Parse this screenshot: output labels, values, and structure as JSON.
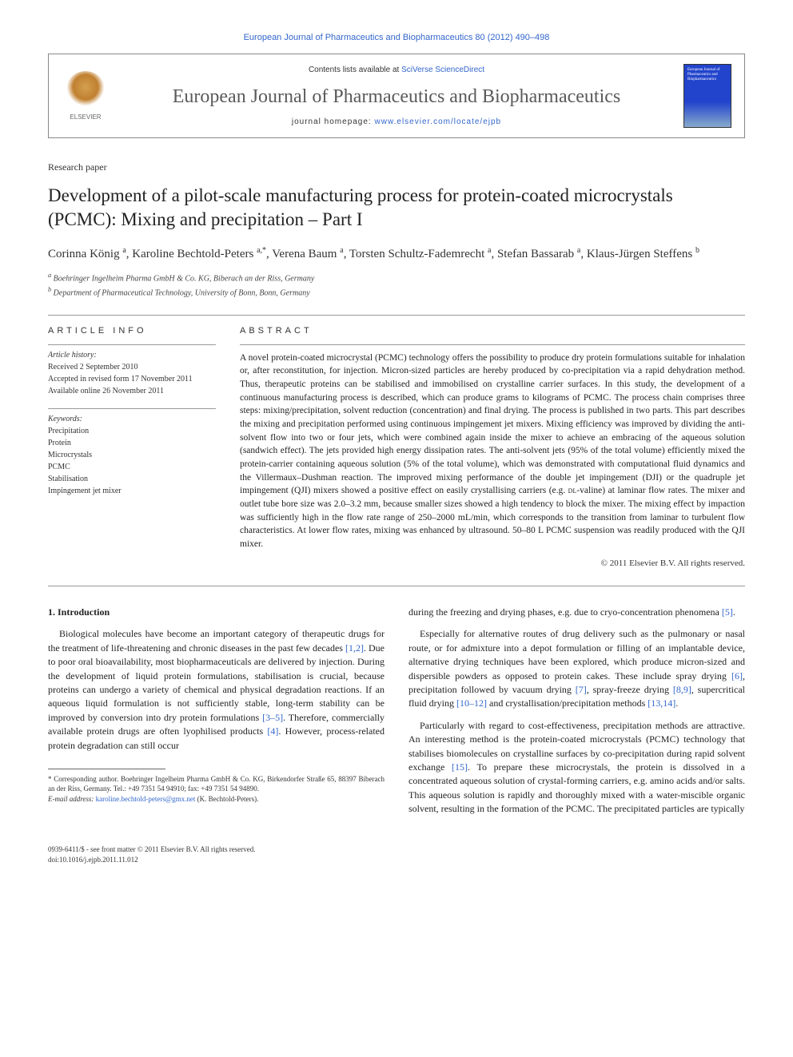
{
  "top_link": "European Journal of Pharmaceutics and Biopharmaceutics 80 (2012) 490–498",
  "header": {
    "contents_prefix": "Contents lists available at ",
    "contents_link": "SciVerse ScienceDirect",
    "journal_name": "European Journal of Pharmaceutics and Biopharmaceutics",
    "homepage_prefix": "journal homepage: ",
    "homepage_url": "www.elsevier.com/locate/ejpb",
    "elsevier_label": "ELSEVIER",
    "cover_text": "European Journal of Pharmaceutics and Biopharmaceutics"
  },
  "paper_type": "Research paper",
  "title": "Development of a pilot-scale manufacturing process for protein-coated microcrystals (PCMC): Mixing and precipitation – Part I",
  "authors_html": "Corinna König <sup>a</sup>, Karoline Bechtold-Peters <sup>a,*</sup>, Verena Baum <sup>a</sup>, Torsten Schultz-Fademrecht <sup>a</sup>, Stefan Bassarab <sup>a</sup>, Klaus-Jürgen Steffens <sup>b</sup>",
  "affiliations": {
    "a": "Boehringer Ingelheim Pharma GmbH & Co. KG, Biberach an der Riss, Germany",
    "b": "Department of Pharmaceutical Technology, University of Bonn, Bonn, Germany"
  },
  "article_info": {
    "heading": "ARTICLE INFO",
    "history_label": "Article history:",
    "received": "Received 2 September 2010",
    "accepted": "Accepted in revised form 17 November 2011",
    "online": "Available online 26 November 2011",
    "keywords_label": "Keywords:",
    "keywords": [
      "Precipitation",
      "Protein",
      "Microcrystals",
      "PCMC",
      "Stabilisation",
      "Impingement jet mixer"
    ]
  },
  "abstract": {
    "heading": "ABSTRACT",
    "text": "A novel protein-coated microcrystal (PCMC) technology offers the possibility to produce dry protein formulations suitable for inhalation or, after reconstitution, for injection. Micron-sized particles are hereby produced by co-precipitation via a rapid dehydration method. Thus, therapeutic proteins can be stabilised and immobilised on crystalline carrier surfaces. In this study, the development of a continuous manufacturing process is described, which can produce grams to kilograms of PCMC. The process chain comprises three steps: mixing/precipitation, solvent reduction (concentration) and final drying. The process is published in two parts. This part describes the mixing and precipitation performed using continuous impingement jet mixers. Mixing efficiency was improved by dividing the anti-solvent flow into two or four jets, which were combined again inside the mixer to achieve an embracing of the aqueous solution (sandwich effect). The jets provided high energy dissipation rates. The anti-solvent jets (95% of the total volume) efficiently mixed the protein-carrier containing aqueous solution (5% of the total volume), which was demonstrated with computational fluid dynamics and the Villermaux–Dushman reaction. The improved mixing performance of the double jet impingement (DJI) or the quadruple jet impingement (QJI) mixers showed a positive effect on easily crystallising carriers (e.g. DL-valine) at laminar flow rates. The mixer and outlet tube bore size was 2.0–3.2 mm, because smaller sizes showed a high tendency to block the mixer. The mixing effect by impaction was sufficiently high in the flow rate range of 250–2000 mL/min, which corresponds to the transition from laminar to turbulent flow characteristics. At lower flow rates, mixing was enhanced by ultrasound. 50–80 L PCMC suspension was readily produced with the QJI mixer.",
    "copyright": "© 2011 Elsevier B.V. All rights reserved."
  },
  "body": {
    "section_heading": "1. Introduction",
    "col1_p1": "Biological molecules have become an important category of therapeutic drugs for the treatment of life-threatening and chronic diseases in the past few decades [1,2]. Due to poor oral bioavailability, most biopharmaceuticals are delivered by injection. During the development of liquid protein formulations, stabilisation is crucial, because proteins can undergo a variety of chemical and physical degradation reactions. If an aqueous liquid formulation is not sufficiently stable, long-term stability can be improved by conversion into dry protein formulations [3–5]. Therefore, commercially available protein drugs are often lyophilised products [4]. However, process-related protein degradation can still occur",
    "col2_p1": "during the freezing and drying phases, e.g. due to cryo-concentration phenomena [5].",
    "col2_p2": "Especially for alternative routes of drug delivery such as the pulmonary or nasal route, or for admixture into a depot formulation or filling of an implantable device, alternative drying techniques have been explored, which produce micron-sized and dispersible powders as opposed to protein cakes. These include spray drying [6], precipitation followed by vacuum drying [7], spray-freeze drying [8,9], supercritical fluid drying [10–12] and crystallisation/precipitation methods [13,14].",
    "col2_p3": "Particularly with regard to cost-effectiveness, precipitation methods are attractive. An interesting method is the protein-coated microcrystals (PCMC) technology that stabilises biomolecules on crystalline surfaces by co-precipitation during rapid solvent exchange [15]. To prepare these microcrystals, the protein is dissolved in a concentrated aqueous solution of crystal-forming carriers, e.g. amino acids and/or salts. This aqueous solution is rapidly and thoroughly mixed with a water-miscible organic solvent, resulting in the formation of the PCMC. The precipitated particles are typically"
  },
  "footnote": {
    "corresponding": "* Corresponding author. Boehringer Ingelheim Pharma GmbH & Co. KG, Birkendorfer Straße 65, 88397 Biberach an der Riss, Germany. Tel.: +49 7351 54 94910; fax: +49 7351 54 94890.",
    "email_label": "E-mail address: ",
    "email": "karoline.bechtold-peters@gmx.net",
    "email_suffix": " (K. Bechtold-Peters)."
  },
  "bottom": {
    "line1": "0939-6411/$ - see front matter © 2011 Elsevier B.V. All rights reserved.",
    "line2": "doi:10.1016/j.ejpb.2011.11.012"
  },
  "refs": {
    "r1": "[1,2]",
    "r2": "[3–5]",
    "r3": "[4]",
    "r4": "[5]",
    "r5": "[6]",
    "r6": "[7]",
    "r7": "[8,9]",
    "r8": "[10–12]",
    "r9": "[13,14]",
    "r10": "[15]"
  }
}
